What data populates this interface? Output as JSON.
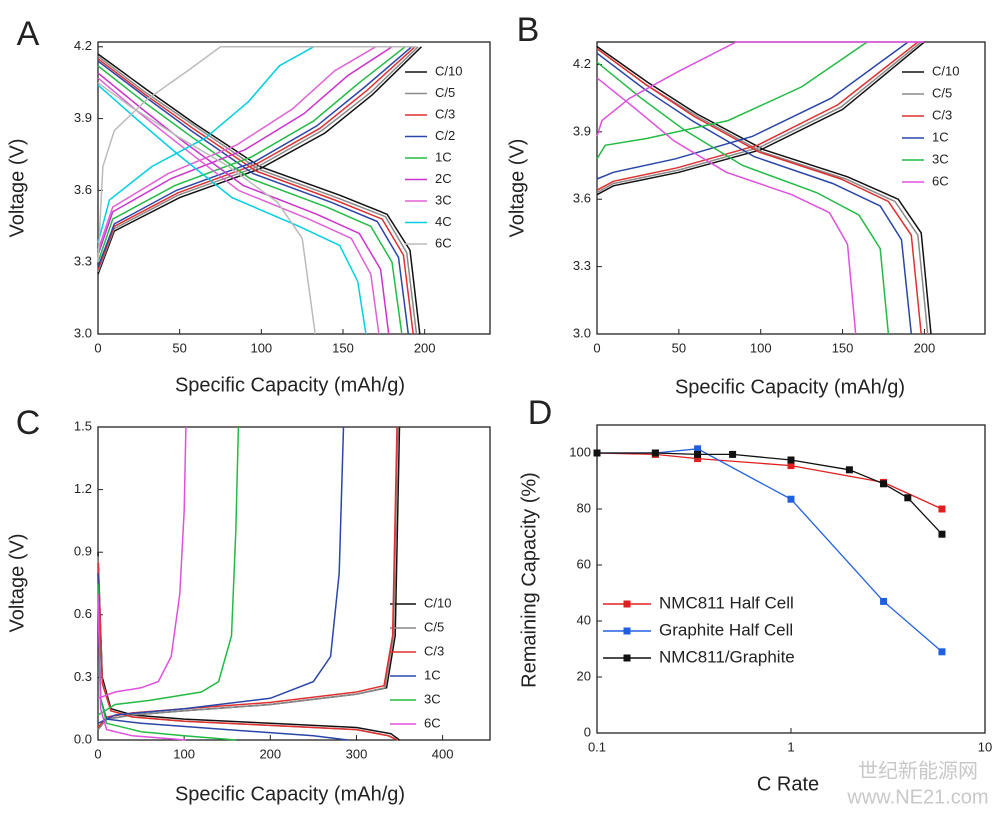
{
  "chart_data": [
    {
      "type": "line",
      "label": "A",
      "xlabel": "Specific Capacity (mAh/g)",
      "ylabel": "Voltage (V)",
      "xlim": [
        0,
        240
      ],
      "xticks": [
        0,
        50,
        100,
        150,
        200
      ],
      "ylim": [
        3.0,
        4.22
      ],
      "yticks": [
        {
          "value": 3,
          "label": "3.0"
        },
        3.3,
        3.6,
        3.9,
        4.2
      ],
      "series": [
        {
          "name": "C/10",
          "color": "#111111",
          "x": [
            0,
            30,
            59,
            99,
            148,
            177,
            191,
            197,
            null,
            0,
            10,
            50,
            99,
            139,
            168,
            198
          ],
          "values": [
            4.17,
            4.02,
            3.88,
            3.7,
            3.58,
            3.5,
            3.35,
            3.0,
            null,
            3.25,
            3.43,
            3.57,
            3.69,
            3.84,
            4.0,
            4.2
          ]
        },
        {
          "name": "C/5",
          "color": "#8a8a8a",
          "x": [
            0,
            29,
            59,
            98,
            146,
            176,
            189,
            195,
            null,
            0,
            10,
            49,
            98,
            137,
            167,
            196
          ],
          "values": [
            4.16,
            4.01,
            3.87,
            3.69,
            3.57,
            3.49,
            3.34,
            3.0,
            null,
            3.26,
            3.44,
            3.58,
            3.7,
            3.85,
            4.01,
            4.2
          ]
        },
        {
          "name": "C/3",
          "color": "#e03030",
          "x": [
            0,
            29,
            58,
            97,
            145,
            174,
            187,
            193,
            null,
            0,
            10,
            49,
            97,
            136,
            165,
            194
          ],
          "values": [
            4.15,
            4.0,
            3.86,
            3.68,
            3.56,
            3.48,
            3.33,
            3.0,
            null,
            3.27,
            3.45,
            3.59,
            3.71,
            3.86,
            4.02,
            4.2
          ]
        },
        {
          "name": "C/2",
          "color": "#2a46a8",
          "x": [
            0,
            29,
            57,
            95,
            143,
            171,
            184,
            190,
            null,
            0,
            10,
            48,
            96,
            134,
            163,
            192
          ],
          "values": [
            4.14,
            3.99,
            3.85,
            3.67,
            3.55,
            3.47,
            3.32,
            3.0,
            null,
            3.28,
            3.46,
            3.6,
            3.72,
            3.87,
            4.03,
            4.2
          ]
        },
        {
          "name": "1C",
          "color": "#22bb44",
          "x": [
            0,
            28,
            56,
            93,
            140,
            167,
            180,
            186,
            null,
            0,
            9,
            47,
            94,
            132,
            160,
            188
          ],
          "values": [
            4.12,
            3.97,
            3.83,
            3.65,
            3.53,
            3.45,
            3.3,
            3.0,
            null,
            3.3,
            3.48,
            3.62,
            3.74,
            3.89,
            4.05,
            4.2
          ]
        },
        {
          "name": "2C",
          "color": "#cc33cc",
          "x": [
            0,
            27,
            53,
            89,
            134,
            160,
            173,
            178,
            null,
            0,
            9,
            45,
            90,
            126,
            153,
            180
          ],
          "values": [
            4.09,
            3.94,
            3.8,
            3.62,
            3.5,
            3.42,
            3.27,
            3.0,
            null,
            3.33,
            3.51,
            3.65,
            3.77,
            3.92,
            4.08,
            4.2
          ]
        },
        {
          "name": "3C",
          "color": "#e060d8",
          "x": [
            0,
            26,
            52,
            86,
            129,
            155,
            167,
            172,
            null,
            0,
            9,
            43,
            85,
            119,
            145,
            170
          ],
          "values": [
            4.07,
            3.92,
            3.78,
            3.6,
            3.48,
            3.4,
            3.25,
            3.0,
            null,
            3.35,
            3.53,
            3.67,
            3.79,
            3.94,
            4.1,
            4.2
          ]
        },
        {
          "name": "4C",
          "color": "#00d0e0",
          "x": [
            0,
            25,
            49,
            82,
            123,
            148,
            159,
            164,
            null,
            0,
            7,
            33,
            66,
            92,
            111,
            132
          ],
          "values": [
            4.04,
            3.89,
            3.75,
            3.57,
            3.45,
            3.37,
            3.22,
            3.0,
            null,
            3.38,
            3.56,
            3.7,
            3.82,
            3.97,
            4.12,
            4.2
          ]
        },
        {
          "name": "6C",
          "color": "#bbbbbb",
          "x": [
            0,
            20,
            50,
            80,
            110,
            125,
            133,
            null,
            0,
            3,
            10,
            30,
            55,
            75,
            195
          ],
          "values": [
            4.05,
            3.95,
            3.82,
            3.7,
            3.55,
            3.4,
            3.0,
            null,
            3.3,
            3.7,
            3.85,
            3.98,
            4.1,
            4.2,
            4.2
          ]
        }
      ]
    },
    {
      "type": "line",
      "label": "B",
      "xlabel": "Specific Capacity (mAh/g)",
      "ylabel": "Voltage (V)",
      "xlim": [
        0,
        237
      ],
      "xticks": [
        0,
        50,
        100,
        150,
        200
      ],
      "ylim": [
        3.0,
        4.3
      ],
      "yticks": [
        {
          "value": 3,
          "label": "3.0"
        },
        3.3,
        3.6,
        3.9,
        4.2
      ],
      "series": [
        {
          "name": "C/10",
          "color": "#111111",
          "x": [
            0,
            31,
            61,
            102,
            153,
            184,
            198,
            204,
            null,
            0,
            10,
            50,
            100,
            150,
            200
          ],
          "values": [
            4.28,
            4.12,
            3.98,
            3.82,
            3.7,
            3.6,
            3.45,
            3.0,
            null,
            3.62,
            3.66,
            3.72,
            3.82,
            4.0,
            4.3
          ]
        },
        {
          "name": "C/5",
          "color": "#8a8a8a",
          "x": [
            0,
            30,
            61,
            101,
            152,
            182,
            196,
            202,
            null,
            0,
            10,
            50,
            99,
            149,
            198
          ],
          "values": [
            4.27,
            4.11,
            3.97,
            3.81,
            3.69,
            3.59,
            3.44,
            3.0,
            null,
            3.63,
            3.67,
            3.73,
            3.83,
            4.01,
            4.3
          ]
        },
        {
          "name": "C/3",
          "color": "#e03030",
          "x": [
            0,
            30,
            59,
            99,
            149,
            178,
            192,
            198,
            null,
            0,
            10,
            49,
            98,
            147,
            196
          ],
          "values": [
            4.27,
            4.11,
            3.97,
            3.81,
            3.69,
            3.59,
            3.44,
            3.0,
            null,
            3.64,
            3.68,
            3.74,
            3.84,
            4.02,
            4.3
          ]
        },
        {
          "name": "1C",
          "color": "#2a46a8",
          "x": [
            0,
            29,
            58,
            96,
            144,
            173,
            186,
            192,
            null,
            0,
            10,
            48,
            95,
            143,
            190
          ],
          "values": [
            4.25,
            4.09,
            3.95,
            3.79,
            3.67,
            3.57,
            3.42,
            3.0,
            null,
            3.69,
            3.72,
            3.78,
            3.88,
            4.05,
            4.3
          ]
        },
        {
          "name": "3C",
          "color": "#22bb44",
          "x": [
            0,
            27,
            53,
            89,
            134,
            160,
            173,
            178,
            null,
            0,
            5,
            30,
            80,
            125,
            165
          ],
          "values": [
            4.21,
            4.05,
            3.91,
            3.75,
            3.63,
            3.53,
            3.38,
            3.0,
            null,
            3.78,
            3.84,
            3.87,
            3.95,
            4.1,
            4.3
          ]
        },
        {
          "name": "6C",
          "color": "#e050e0",
          "x": [
            0,
            24,
            47,
            79,
            119,
            142,
            153,
            158,
            null,
            0,
            3,
            20,
            50,
            85,
            200
          ],
          "values": [
            4.14,
            4.0,
            3.86,
            3.72,
            3.62,
            3.54,
            3.4,
            3.0,
            null,
            3.88,
            3.95,
            4.05,
            4.17,
            4.3,
            4.3
          ]
        }
      ]
    },
    {
      "type": "line",
      "label": "C",
      "xlabel": "Specific Capacity (mAh/g)",
      "ylabel": "Voltage (V)",
      "xlim": [
        0,
        455
      ],
      "xticks": [
        0,
        100,
        200,
        300,
        400
      ],
      "ylim": [
        0,
        1.5
      ],
      "yticks": [
        {
          "value": 0,
          "label": "0.0"
        },
        0.3,
        0.6,
        0.9,
        1.2,
        1.5
      ],
      "series": [
        {
          "name": "C/10",
          "color": "#111111",
          "x": [
            0,
            5,
            15,
            40,
            100,
            200,
            300,
            340,
            350,
            null,
            0,
            10,
            40,
            100,
            200,
            300,
            335,
            345,
            350
          ],
          "values": [
            0.9,
            0.3,
            0.15,
            0.12,
            0.1,
            0.08,
            0.06,
            0.03,
            0.0,
            null,
            0.05,
            0.1,
            0.12,
            0.14,
            0.17,
            0.22,
            0.25,
            0.5,
            1.5
          ]
        },
        {
          "name": "C/5",
          "color": "#8a8a8a",
          "x": [
            0,
            5,
            15,
            40,
            100,
            200,
            300,
            338,
            348,
            null,
            0,
            10,
            40,
            100,
            200,
            300,
            333,
            343,
            348
          ],
          "values": [
            0.88,
            0.28,
            0.14,
            0.11,
            0.09,
            0.07,
            0.05,
            0.02,
            0.0,
            null,
            0.05,
            0.1,
            0.12,
            0.14,
            0.17,
            0.22,
            0.25,
            0.5,
            1.5
          ]
        },
        {
          "name": "C/3",
          "color": "#e03030",
          "x": [
            0,
            5,
            15,
            40,
            100,
            200,
            300,
            337,
            347,
            null,
            0,
            10,
            40,
            100,
            200,
            300,
            332,
            342,
            347
          ],
          "values": [
            0.85,
            0.27,
            0.14,
            0.11,
            0.09,
            0.07,
            0.05,
            0.02,
            0.0,
            null,
            0.06,
            0.11,
            0.13,
            0.15,
            0.18,
            0.23,
            0.26,
            0.5,
            1.5
          ]
        },
        {
          "name": "1C",
          "color": "#2a46a8",
          "x": [
            0,
            3,
            10,
            50,
            150,
            250,
            290,
            null,
            0,
            20,
            100,
            200,
            250,
            270,
            280,
            285
          ],
          "values": [
            0.8,
            0.2,
            0.1,
            0.08,
            0.05,
            0.02,
            0.0,
            null,
            0.08,
            0.12,
            0.15,
            0.2,
            0.28,
            0.4,
            0.8,
            1.5
          ]
        },
        {
          "name": "3C",
          "color": "#22bb44",
          "x": [
            0,
            3,
            10,
            50,
            100,
            160,
            null,
            0,
            20,
            60,
            120,
            140,
            155,
            160,
            163
          ],
          "values": [
            0.75,
            0.2,
            0.08,
            0.04,
            0.02,
            0.0,
            null,
            0.12,
            0.17,
            0.19,
            0.23,
            0.28,
            0.5,
            1.0,
            1.5
          ]
        },
        {
          "name": "6C",
          "color": "#e050e0",
          "x": [
            0,
            3,
            10,
            40,
            102,
            null,
            0,
            20,
            50,
            70,
            85,
            95,
            100,
            102
          ],
          "values": [
            0.7,
            0.15,
            0.05,
            0.02,
            0.0,
            null,
            0.2,
            0.23,
            0.25,
            0.28,
            0.4,
            0.7,
            1.1,
            1.5
          ]
        }
      ]
    },
    {
      "type": "line",
      "label": "D",
      "xlabel": "C Rate",
      "ylabel": "Remaining Capacity (%)",
      "xscale": "log",
      "markers": "square",
      "xlim": [
        0.1,
        10
      ],
      "xticks": [
        0.1,
        1,
        10
      ],
      "ylim": [
        0,
        110
      ],
      "yticks": [
        0,
        20,
        40,
        60,
        80,
        100
      ],
      "series": [
        {
          "name": "NMC811 Half Cell",
          "color": "#e02020",
          "x": [
            0.1,
            0.2,
            0.33,
            1,
            3,
            6
          ],
          "values": [
            100,
            99.5,
            98,
            95.5,
            89.5,
            80
          ]
        },
        {
          "name": "Graphite Half Cell",
          "color": "#2060e0",
          "x": [
            0.1,
            0.2,
            0.33,
            1,
            3,
            6
          ],
          "values": [
            100,
            100,
            101.5,
            83.5,
            47,
            29
          ]
        },
        {
          "name": "NMC811/Graphite",
          "color": "#111111",
          "x": [
            0.1,
            0.2,
            0.33,
            0.5,
            1,
            2,
            3,
            4,
            6
          ],
          "values": [
            100,
            100,
            99.5,
            99.5,
            97.5,
            94,
            89,
            84,
            71
          ]
        }
      ]
    }
  ],
  "watermark": [
    "世纪新能源网",
    "www.NE21.com"
  ]
}
